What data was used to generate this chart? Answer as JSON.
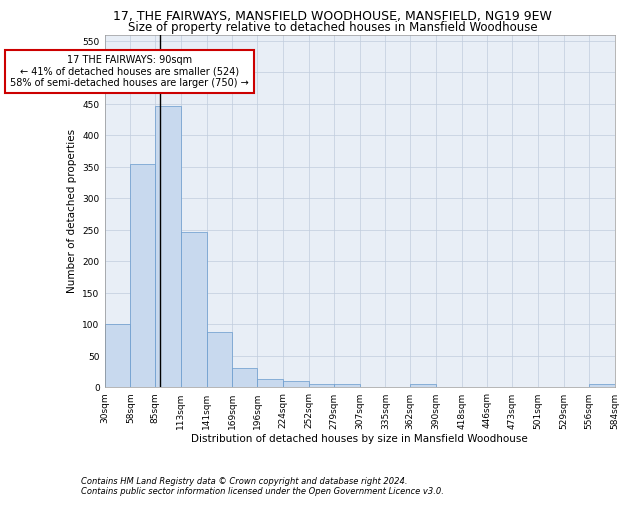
{
  "title": "17, THE FAIRWAYS, MANSFIELD WOODHOUSE, MANSFIELD, NG19 9EW",
  "subtitle": "Size of property relative to detached houses in Mansfield Woodhouse",
  "xlabel": "Distribution of detached houses by size in Mansfield Woodhouse",
  "ylabel": "Number of detached properties",
  "footnote1": "Contains HM Land Registry data © Crown copyright and database right 2024.",
  "footnote2": "Contains public sector information licensed under the Open Government Licence v3.0.",
  "bar_color": "#c8d9ee",
  "bar_edge_color": "#6699cc",
  "grid_color": "#c0ccdd",
  "subject_line_color": "#000000",
  "annotation_box_edgecolor": "#cc0000",
  "annotation_line1": "17 THE FAIRWAYS: 90sqm",
  "annotation_line2": "← 41% of detached houses are smaller (524)",
  "annotation_line3": "58% of semi-detached houses are larger (750) →",
  "subject_value": 90,
  "bins": [
    30,
    58,
    85,
    113,
    141,
    169,
    196,
    224,
    252,
    279,
    307,
    335,
    362,
    390,
    418,
    446,
    473,
    501,
    529,
    556,
    584
  ],
  "bar_heights": [
    100,
    355,
    447,
    246,
    87,
    30,
    13,
    9,
    5,
    5,
    0,
    0,
    5,
    0,
    0,
    0,
    0,
    0,
    0,
    5
  ],
  "ylim": [
    0,
    560
  ],
  "yticks": [
    0,
    50,
    100,
    150,
    200,
    250,
    300,
    350,
    400,
    450,
    500,
    550
  ],
  "bg_color": "#e8eef6",
  "title_fontsize": 9,
  "subtitle_fontsize": 8.5,
  "axis_label_fontsize": 7.5,
  "tick_fontsize": 6.5,
  "annotation_fontsize": 7,
  "footnote_fontsize": 6
}
